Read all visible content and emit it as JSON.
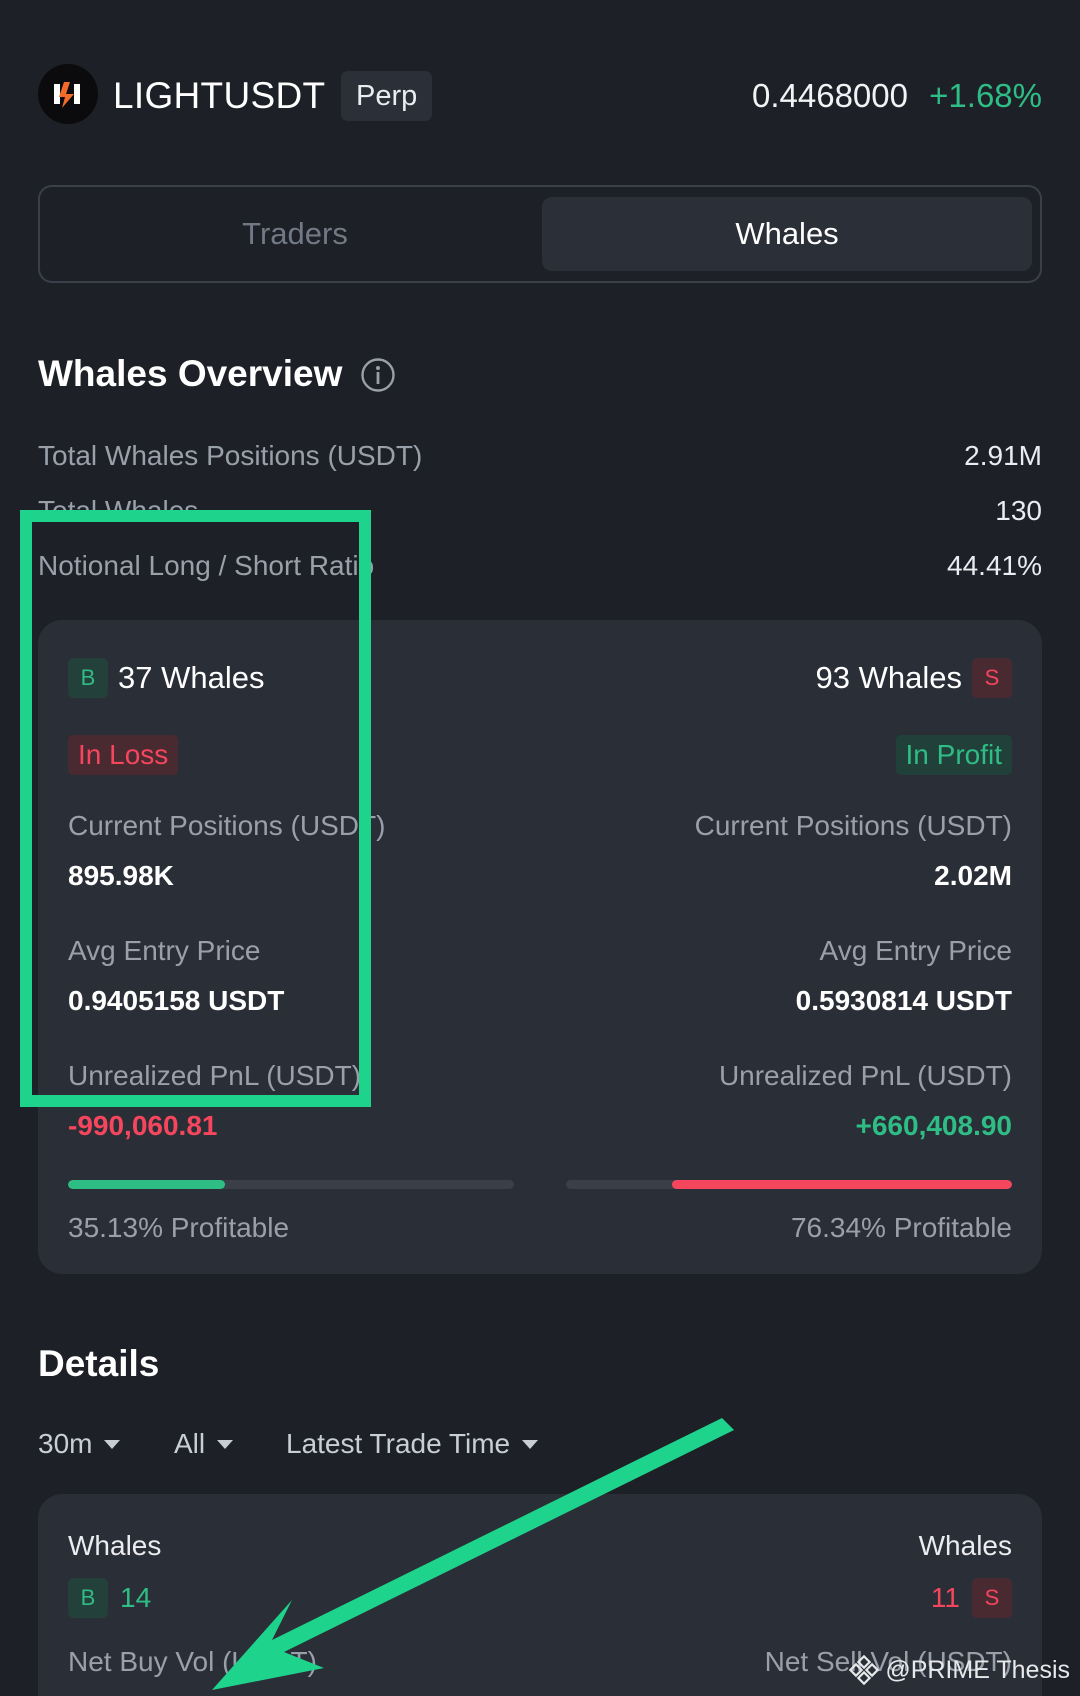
{
  "header": {
    "symbol": "LIGHTUSDT",
    "contract_type": "Perp",
    "price": "0.4468000",
    "change": "+1.68%"
  },
  "tabs": [
    {
      "label": "Traders",
      "active": false
    },
    {
      "label": "Whales",
      "active": true
    }
  ],
  "overview": {
    "title": "Whales Overview",
    "rows": [
      {
        "label": "Total Whales Positions (USDT)",
        "value": "2.91M"
      },
      {
        "label": "Total Whales",
        "value": "130"
      },
      {
        "label": "Notional Long / Short Ratio",
        "value": "44.41%"
      }
    ]
  },
  "long_side": {
    "badge": "B",
    "count_label": "37 Whales",
    "status": "In Loss",
    "positions_label": "Current Positions (USDT)",
    "positions_value": "895.98K",
    "entry_label": "Avg Entry Price",
    "entry_value": "0.9405158 USDT",
    "pnl_label": "Unrealized PnL (USDT)",
    "pnl_value": "-990,060.81",
    "profitable_fraction": 0.3513,
    "profitable_label": "35.13% Profitable"
  },
  "short_side": {
    "badge": "S",
    "count_label": "93 Whales",
    "status": "In Profit",
    "positions_label": "Current Positions (USDT)",
    "positions_value": "2.02M",
    "entry_label": "Avg Entry Price",
    "entry_value": "0.5930814 USDT",
    "pnl_label": "Unrealized PnL (USDT)",
    "pnl_value": "+660,408.90",
    "profitable_fraction": 0.7634,
    "profitable_label": "76.34% Profitable"
  },
  "details": {
    "title": "Details",
    "filters": [
      {
        "label": "30m"
      },
      {
        "label": "All"
      },
      {
        "label": "Latest Trade Time"
      }
    ],
    "buy": {
      "label": "Whales",
      "badge": "B",
      "count": "14",
      "vol_label": "Net Buy Vol (USDT)"
    },
    "sell": {
      "label": "Whales",
      "badge": "S",
      "count": "11",
      "vol_label": "Net Sell Vol (USDT)"
    }
  },
  "watermark": {
    "text": "@PRIME Thesis"
  },
  "colors": {
    "positive": "#2ebd85",
    "negative": "#f6465d",
    "annotation": "#1ed48d"
  }
}
